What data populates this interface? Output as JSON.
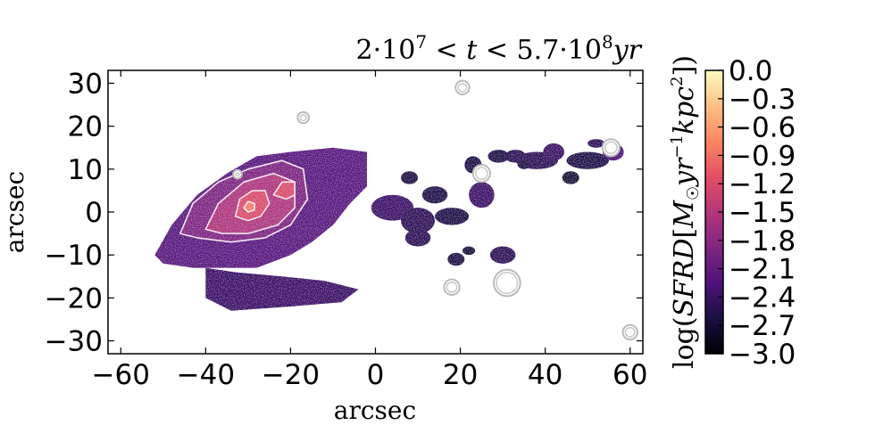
{
  "chart_data": {
    "type": "heatmap",
    "title": "2·10⁷ < t < 5.7·10⁸yr",
    "xlabel": "arcsec",
    "ylabel": "arcsec",
    "xlim": [
      -63,
      63
    ],
    "ylim": [
      -33,
      33
    ],
    "xticks": [
      -60,
      -40,
      -20,
      0,
      20,
      40,
      60
    ],
    "xtick_labels": [
      "−60",
      "−40",
      "−20",
      "0",
      "20",
      "40",
      "60"
    ],
    "yticks": [
      30,
      20,
      10,
      0,
      -10,
      -20,
      -30
    ],
    "ytick_labels": [
      "30",
      "20",
      "10",
      "0",
      "−10",
      "−20",
      "−30"
    ],
    "grid": false,
    "colormap": "magma",
    "colorbar": {
      "label": "log(SFRD[M☉yr⁻¹kpc²])",
      "range": [
        -3.0,
        0.0
      ],
      "ticks": [
        0.0,
        -0.3,
        -0.6,
        -0.9,
        -1.2,
        -1.5,
        -1.8,
        -2.1,
        -2.4,
        -2.7,
        -3.0
      ],
      "tick_labels": [
        "0.0",
        "−0.3",
        "−0.6",
        "−0.9",
        "−1.2",
        "−1.5",
        "−1.8",
        "−2.1",
        "−2.4",
        "−2.7",
        "−3.0"
      ]
    },
    "main_body": {
      "outline": [
        [
          -52,
          -10
        ],
        [
          -48,
          -3
        ],
        [
          -42,
          4
        ],
        [
          -35,
          9
        ],
        [
          -28,
          13
        ],
        [
          -20,
          14
        ],
        [
          -10,
          15
        ],
        [
          -2,
          14
        ],
        [
          -2,
          6
        ],
        [
          -6,
          2
        ],
        [
          -10,
          -3
        ],
        [
          -15,
          -7
        ],
        [
          -20,
          -10
        ],
        [
          -28,
          -13
        ],
        [
          -36,
          -13
        ],
        [
          -43,
          -13
        ],
        [
          -50,
          -12
        ]
      ],
      "lower_extension": [
        [
          -40,
          -13
        ],
        [
          -33,
          -14
        ],
        [
          -22,
          -15
        ],
        [
          -12,
          -16
        ],
        [
          -4,
          -18
        ],
        [
          -8,
          -21
        ],
        [
          -20,
          -22
        ],
        [
          -34,
          -23
        ],
        [
          -40,
          -20
        ]
      ],
      "value": -2.2
    },
    "patches": [
      {
        "x": 4,
        "y": 1,
        "rx": 5,
        "ry": 3,
        "value": -2.4
      },
      {
        "x": 10,
        "y": -2,
        "rx": 4,
        "ry": 3,
        "value": -2.5
      },
      {
        "x": 10,
        "y": -6,
        "rx": 3,
        "ry": 2,
        "value": -2.5
      },
      {
        "x": 18,
        "y": -1,
        "rx": 4,
        "ry": 2,
        "value": -2.6
      },
      {
        "x": 25,
        "y": 4,
        "rx": 3,
        "ry": 3,
        "value": -2.4
      },
      {
        "x": 23,
        "y": 11,
        "rx": 2,
        "ry": 2,
        "value": -2.6
      },
      {
        "x": 14,
        "y": 4,
        "rx": 3,
        "ry": 2,
        "value": -2.6
      },
      {
        "x": 30,
        "y": -10,
        "rx": 3,
        "ry": 2,
        "value": -2.5
      },
      {
        "x": 19,
        "y": -11,
        "rx": 2,
        "ry": 1.5,
        "value": -2.6
      },
      {
        "x": 38,
        "y": 12,
        "rx": 5,
        "ry": 2,
        "value": -2.5
      },
      {
        "x": 42,
        "y": 14,
        "rx": 2.5,
        "ry": 2,
        "value": -2.4
      },
      {
        "x": 50,
        "y": 12,
        "rx": 5,
        "ry": 2,
        "value": -2.6
      },
      {
        "x": 56,
        "y": 14,
        "rx": 2.5,
        "ry": 2,
        "value": -2.3
      },
      {
        "x": 46,
        "y": 8,
        "rx": 2,
        "ry": 1.5,
        "value": -2.7
      },
      {
        "x": 33,
        "y": 13,
        "rx": 2.5,
        "ry": 1.5,
        "value": -2.5
      },
      {
        "x": 29,
        "y": 13,
        "rx": 2.5,
        "ry": 1.5,
        "value": -2.6
      },
      {
        "x": 8,
        "y": 8,
        "rx": 2,
        "ry": 1.5,
        "value": -2.6
      },
      {
        "x": 22,
        "y": -9,
        "rx": 1.5,
        "ry": 1,
        "value": -2.7
      },
      {
        "x": 35,
        "y": 11,
        "rx": 1.5,
        "ry": 1,
        "value": -2.6
      },
      {
        "x": 52,
        "y": 16,
        "rx": 2,
        "ry": 1,
        "value": -2.5
      }
    ],
    "contours": [
      {
        "level": 1,
        "points": [
          [
            -46,
            -5
          ],
          [
            -43,
            2
          ],
          [
            -37,
            7
          ],
          [
            -30,
            10
          ],
          [
            -22,
            12
          ],
          [
            -17,
            10
          ],
          [
            -16,
            3
          ],
          [
            -20,
            -3
          ],
          [
            -26,
            -6
          ],
          [
            -34,
            -7
          ],
          [
            -42,
            -6
          ]
        ]
      },
      {
        "level": 2,
        "points": [
          [
            -40,
            -4
          ],
          [
            -37,
            2
          ],
          [
            -31,
            7
          ],
          [
            -24,
            9
          ],
          [
            -19,
            7
          ],
          [
            -19,
            1
          ],
          [
            -23,
            -3
          ],
          [
            -30,
            -5
          ],
          [
            -36,
            -5
          ]
        ]
      },
      {
        "level": 3,
        "points": [
          [
            -33,
            -1
          ],
          [
            -32,
            3
          ],
          [
            -29,
            5
          ],
          [
            -26,
            5
          ],
          [
            -25,
            2
          ],
          [
            -27,
            -1
          ],
          [
            -30,
            -2
          ]
        ]
      },
      {
        "level": 3,
        "points": [
          [
            -24,
            4
          ],
          [
            -22,
            7
          ],
          [
            -19,
            7
          ],
          [
            -19,
            4
          ],
          [
            -21,
            3
          ]
        ]
      },
      {
        "level": 4,
        "points": [
          [
            -31,
            1
          ],
          [
            -30,
            2.5
          ],
          [
            -28.5,
            2
          ],
          [
            -28.5,
            0.5
          ],
          [
            -30,
            0
          ]
        ]
      }
    ],
    "masked_sources": [
      {
        "x": 20.5,
        "y": 29,
        "r": 1.2
      },
      {
        "x": -17,
        "y": 22,
        "r": 0.9
      },
      {
        "x": 25,
        "y": 9,
        "r": 1.6
      },
      {
        "x": 55.5,
        "y": 15,
        "r": 1.6
      },
      {
        "x": 18,
        "y": -17.5,
        "r": 1.4
      },
      {
        "x": 31,
        "y": -16.5,
        "r": 2.7
      },
      {
        "x": 60,
        "y": -28,
        "r": 1.3
      },
      {
        "x": -32.5,
        "y": 8.8,
        "r": 0.6
      }
    ]
  }
}
